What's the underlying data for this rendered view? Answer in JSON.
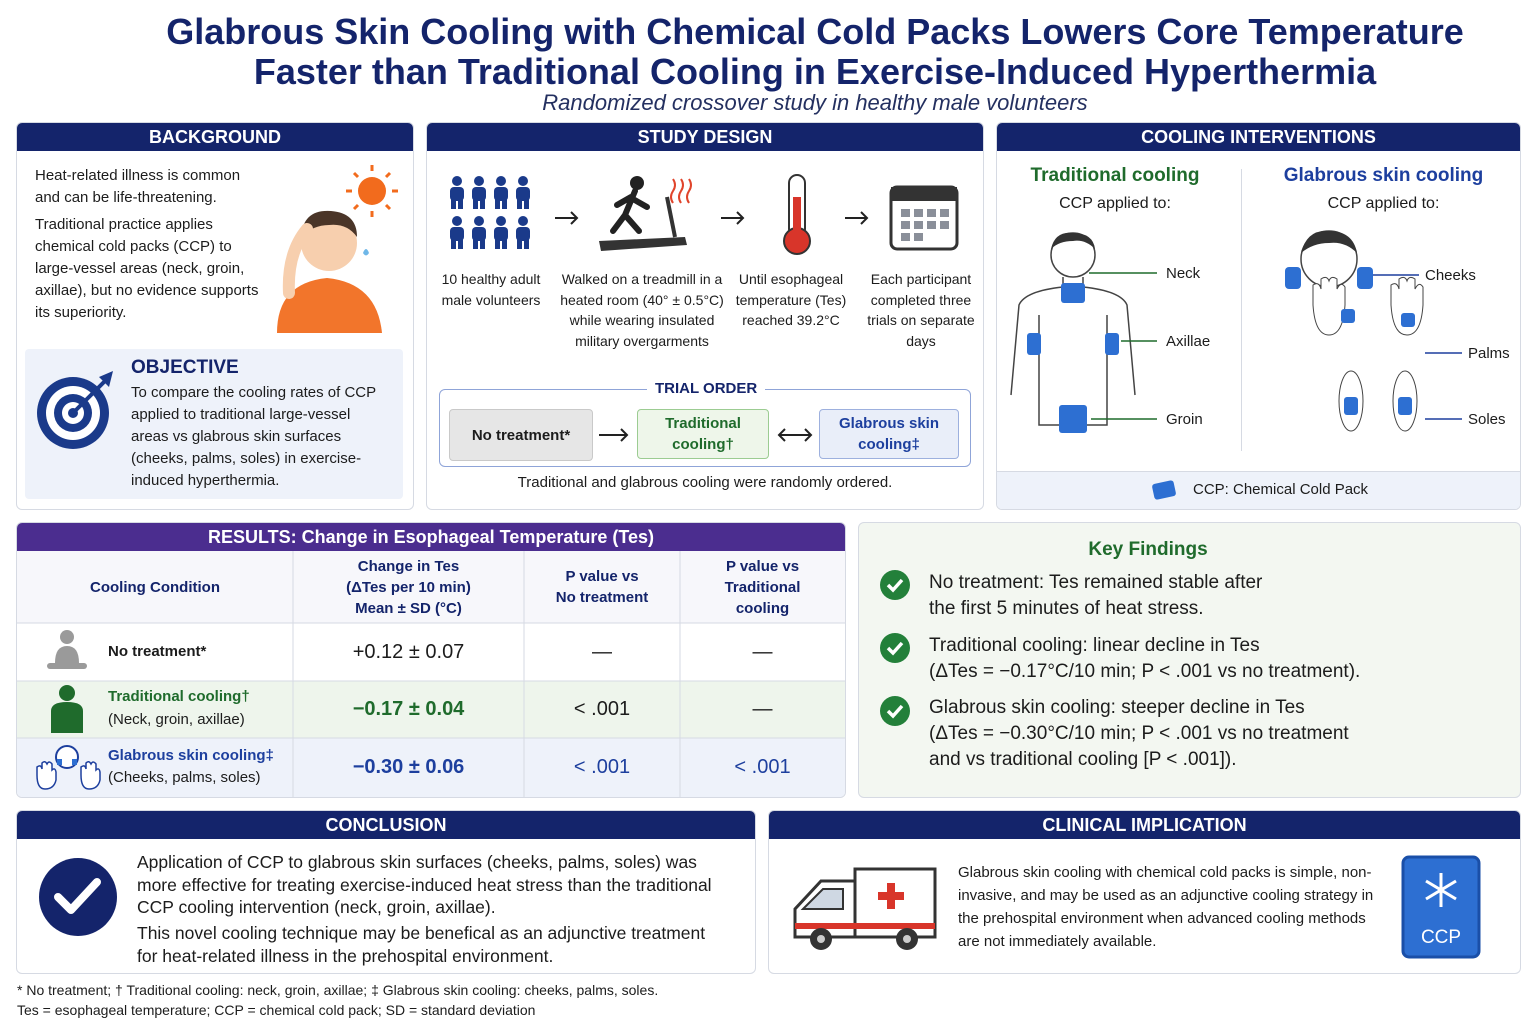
{
  "header": {
    "title": [
      "Glabrous Skin Cooling with Chemical Cold Packs Lowers Core Temperature",
      "Faster than Traditional Cooling in Exercise-Induced Hyperthermia"
    ],
    "subtitle": "Randomized crossover study in healthy male volunteers"
  },
  "background": {
    "heading": "BACKGROUND",
    "paragraphs": [
      "Heat-related illness is common and can be life-threatening.",
      "Traditional practice applies chemical cold packs (CCP) to large-vessel areas (neck, groin, axillae), but no evidence supports its superiority."
    ]
  },
  "objective": {
    "heading": "OBJECTIVE",
    "text": "To compare the cooling rates of CCP applied to traditional large-vessel areas vs glabrous skin surfaces (cheeks, palms, soles) in exercise-induced hyperthermia."
  },
  "study_design": {
    "heading": "STUDY DESIGN",
    "steps": [
      "10 healthy adult male volunteers",
      "Walked on a treadmill in a heated room (40° ± 0.5°C) while wearing insulated military overgarments",
      "Until esophageal temperature (Tes) reached 39.2°C",
      "Each participant completed three trials on separate days"
    ],
    "trial_order": {
      "heading": "TRIAL ORDER",
      "arms": [
        "No treatment*",
        "Traditional cooling†",
        "Glabrous skin cooling‡"
      ],
      "note": "Traditional and glabrous cooling were randomly ordered."
    }
  },
  "cooling_interventions": {
    "heading": "COOLING INTERVENTIONS",
    "groups": [
      {
        "title": "Traditional cooling",
        "subtitle": "CCP applied to:",
        "sites": [
          "Neck",
          "Axillae",
          "Groin"
        ]
      },
      {
        "title": "Glabrous skin cooling",
        "subtitle": "CCP applied to:",
        "sites": [
          "Cheeks",
          "Palms",
          "Soles"
        ]
      }
    ],
    "legend": "CCP: Chemical Cold Pack"
  },
  "results": {
    "heading": "RESULTS: Change in Esophageal Temperature (Tes)",
    "columns": [
      [
        "Cooling Condition"
      ],
      [
        "Change in Tes",
        "(ΔTes per 10 min)",
        "Mean ± SD (°C)"
      ],
      [
        "P value vs",
        "No treatment"
      ],
      [
        "P value vs",
        "Traditional",
        "cooling"
      ]
    ],
    "rows": [
      {
        "condition": "No treatment*",
        "change": "+0.12 ± 0.07",
        "p_vs_none": "—",
        "p_vs_traditional": "—"
      },
      {
        "condition": "Traditional cooling†",
        "sites": "(Neck, groin, axillae)",
        "change": "−0.17 ± 0.04",
        "p_vs_none": "< .001",
        "p_vs_traditional": "—"
      },
      {
        "condition": "Glabrous skin cooling‡",
        "sites": "(Cheeks, palms, soles)",
        "change": "−0.30 ± 0.06",
        "p_vs_none": "< .001",
        "p_vs_traditional": "< .001"
      }
    ]
  },
  "key_findings": {
    "heading": "Key Findings",
    "items": [
      [
        "No treatment: Tes remained stable after",
        "the first 5 minutes of heat stress."
      ],
      [
        "Traditional cooling: linear decline in Tes",
        "(ΔTes = −0.17°C/10 min; P < .001 vs no treatment)."
      ],
      [
        "Glabrous skin cooling: steeper decline in Tes",
        "(ΔTes = −0.30°C/10 min; P < .001 vs no treatment",
        "and vs traditional cooling [P < .001])."
      ]
    ]
  },
  "conclusion": {
    "heading": "CONCLUSION",
    "paragraphs": [
      "Application of CCP to glabrous skin surfaces (cheeks, palms, soles) was more effective for treating exercise-induced heat stress than the traditional CCP cooling intervention (neck, groin, axillae).",
      "This novel cooling technique may be benefical as an adjunctive treatment for heat-related illness in the prehospital environment."
    ]
  },
  "clinical_implication": {
    "heading": "CLINICAL IMPLICATION",
    "text": "Glabrous skin cooling with chemical cold packs is simple, non-invasive, and may be used as an adjunctive cooling strategy in the prehospital environment when advanced cooling methods are not immediately available.",
    "pack_label": "CCP"
  },
  "footnotes": [
    "* No treatment; † Traditional cooling: neck, groin, axillae;  ‡ Glabrous skin cooling: cheeks, palms, soles.",
    "Tes = esophageal temperature; CCP = chemical cold pack; SD = standard deviation"
  ]
}
